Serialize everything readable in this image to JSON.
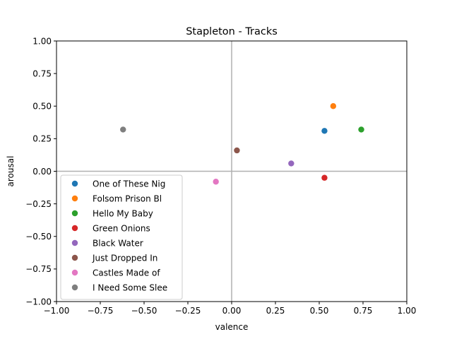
{
  "chart_data": {
    "type": "scatter",
    "title": "Stapleton - Tracks",
    "xlabel": "valence",
    "ylabel": "arousal",
    "xlim": [
      -1.0,
      1.0
    ],
    "ylim": [
      -1.0,
      1.0
    ],
    "xticks": [
      "−1.00",
      "−0.75",
      "−0.50",
      "−0.25",
      "0.00",
      "0.25",
      "0.50",
      "0.75",
      "1.00"
    ],
    "yticks": [
      "−1.00",
      "−0.75",
      "−0.50",
      "−0.25",
      "0.00",
      "0.25",
      "0.50",
      "0.75",
      "1.00"
    ],
    "xtick_values": [
      -1.0,
      -0.75,
      -0.5,
      -0.25,
      0.0,
      0.25,
      0.5,
      0.75,
      1.0
    ],
    "ytick_values": [
      -1.0,
      -0.75,
      -0.5,
      -0.25,
      0.0,
      0.25,
      0.5,
      0.75,
      1.0
    ],
    "zero_lines": true,
    "grid": false,
    "legend_position": "lower-left",
    "series": [
      {
        "name": "One of These Nig",
        "color": "#1f77b4",
        "x": 0.53,
        "y": 0.31
      },
      {
        "name": "Folsom Prison Bl",
        "color": "#ff7f0e",
        "x": 0.58,
        "y": 0.5
      },
      {
        "name": "Hello My Baby",
        "color": "#2ca02c",
        "x": 0.74,
        "y": 0.32
      },
      {
        "name": "Green Onions",
        "color": "#d62728",
        "x": 0.53,
        "y": -0.05
      },
      {
        "name": "Black Water",
        "color": "#9467bd",
        "x": 0.34,
        "y": 0.06
      },
      {
        "name": "Just Dropped In",
        "color": "#8c564b",
        "x": 0.03,
        "y": 0.16
      },
      {
        "name": "Castles Made of",
        "color": "#e377c2",
        "x": -0.09,
        "y": -0.08
      },
      {
        "name": "I Need Some Slee",
        "color": "#7f7f7f",
        "x": -0.62,
        "y": 0.32
      }
    ]
  }
}
